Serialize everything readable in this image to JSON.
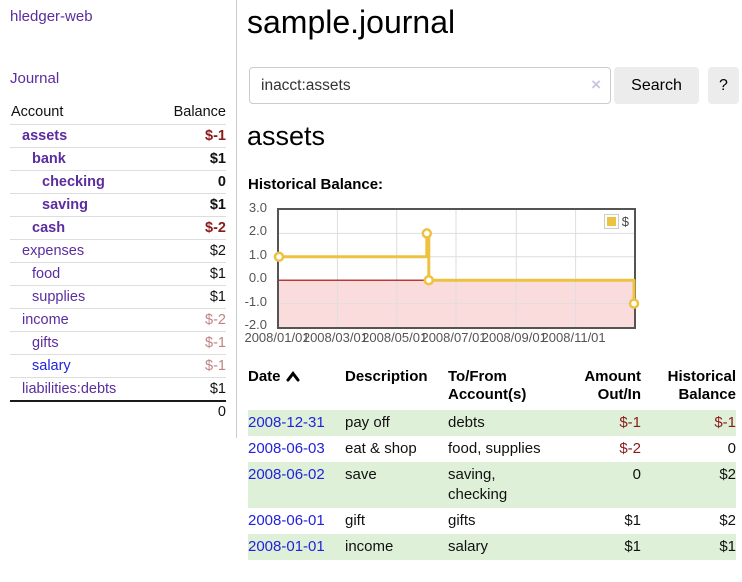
{
  "app": {
    "brand": "hledger-web",
    "nav_journal": "Journal"
  },
  "header": {
    "title": "sample.journal"
  },
  "search": {
    "value": "inacct:assets",
    "clear_icon": "×",
    "button_label": "Search",
    "help_label": "?"
  },
  "account_page": {
    "heading": "assets",
    "chart_title": "Historical Balance:"
  },
  "colors": {
    "link_purple": "#5b2d9e",
    "link_blue": "#2222dd",
    "neg_strong": "#8c1a1a",
    "neg_soft": "#c08383",
    "row_green": "#dff0d8",
    "series_gold": "#edc240",
    "negative_fill": "#fbdcdc",
    "zero_line": "#a80000",
    "plot_border": "#545454"
  },
  "sidebar": {
    "accounts_header": {
      "account": "Account",
      "balance": "Balance"
    },
    "accounts": [
      {
        "name": "assets",
        "indent": 1,
        "balance": "$-1",
        "bold": true,
        "balance_class": "neg-strong",
        "unvisited": false
      },
      {
        "name": "bank",
        "indent": 2,
        "balance": "$1",
        "bold": true,
        "balance_class": "",
        "unvisited": false
      },
      {
        "name": "checking",
        "indent": 3,
        "balance": "0",
        "bold": true,
        "balance_class": "",
        "unvisited": false
      },
      {
        "name": "saving",
        "indent": 3,
        "balance": "$1",
        "bold": true,
        "balance_class": "",
        "unvisited": false
      },
      {
        "name": "cash",
        "indent": 2,
        "balance": "$-2",
        "bold": true,
        "balance_class": "neg-strong",
        "unvisited": false
      },
      {
        "name": "expenses",
        "indent": 1,
        "balance": "$2",
        "bold": false,
        "balance_class": "",
        "unvisited": false
      },
      {
        "name": "food",
        "indent": 2,
        "balance": "$1",
        "bold": false,
        "balance_class": "",
        "unvisited": false
      },
      {
        "name": "supplies",
        "indent": 2,
        "balance": "$1",
        "bold": false,
        "balance_class": "",
        "unvisited": false
      },
      {
        "name": "income",
        "indent": 1,
        "balance": "$-2",
        "bold": false,
        "balance_class": "neg-soft",
        "unvisited": false
      },
      {
        "name": "gifts",
        "indent": 2,
        "balance": "$-1",
        "bold": false,
        "balance_class": "neg-soft",
        "unvisited": false
      },
      {
        "name": "salary",
        "indent": 2,
        "balance": "$-1",
        "bold": false,
        "balance_class": "neg-soft",
        "unvisited": true
      },
      {
        "name": "liabilities:debts",
        "indent": 1,
        "balance": "$1",
        "bold": false,
        "balance_class": "",
        "unvisited": false
      }
    ],
    "total": "0"
  },
  "chart_data": {
    "type": "line",
    "title": "Historical Balance",
    "step": true,
    "legend": "$",
    "legend_position": "top-right",
    "x": [
      "2008-01-01",
      "2008-06-01",
      "2008-06-03",
      "2008-12-31"
    ],
    "values": [
      1,
      2,
      0,
      -1
    ],
    "xlim": [
      "2008-01-01",
      "2008-12-31"
    ],
    "ylim": [
      -2,
      3
    ],
    "yticks": [
      3.0,
      2.0,
      1.0,
      0.0,
      -1.0,
      -2.0
    ],
    "xtick_labels": [
      "2008/01/01",
      "2008/03/01",
      "2008/05/01",
      "2008/07/01",
      "2008/09/01",
      "2008/11/01"
    ],
    "grid": true,
    "negative_region_shaded": true
  },
  "register": {
    "columns": {
      "date": "Date",
      "description": "Description",
      "accounts": "To/From Account(s)",
      "amount": "Amount Out/In",
      "balance": "Historical Balance"
    },
    "rows": [
      {
        "date": "2008-12-31",
        "description": "pay off",
        "accounts": "debts",
        "amount": "$-1",
        "balance": "$-1",
        "amount_negative": true,
        "balance_negative": true
      },
      {
        "date": "2008-06-03",
        "description": "eat & shop",
        "accounts": "food, supplies",
        "amount": "$-2",
        "balance": "0",
        "amount_negative": true,
        "balance_negative": false
      },
      {
        "date": "2008-06-02",
        "description": "save",
        "accounts": "saving, checking",
        "amount": "0",
        "balance": "$2",
        "amount_negative": false,
        "balance_negative": false
      },
      {
        "date": "2008-06-01",
        "description": "gift",
        "accounts": "gifts",
        "amount": "$1",
        "balance": "$2",
        "amount_negative": false,
        "balance_negative": false
      },
      {
        "date": "2008-01-01",
        "description": "income",
        "accounts": "salary",
        "amount": "$1",
        "balance": "$1",
        "amount_negative": false,
        "balance_negative": false
      }
    ]
  }
}
